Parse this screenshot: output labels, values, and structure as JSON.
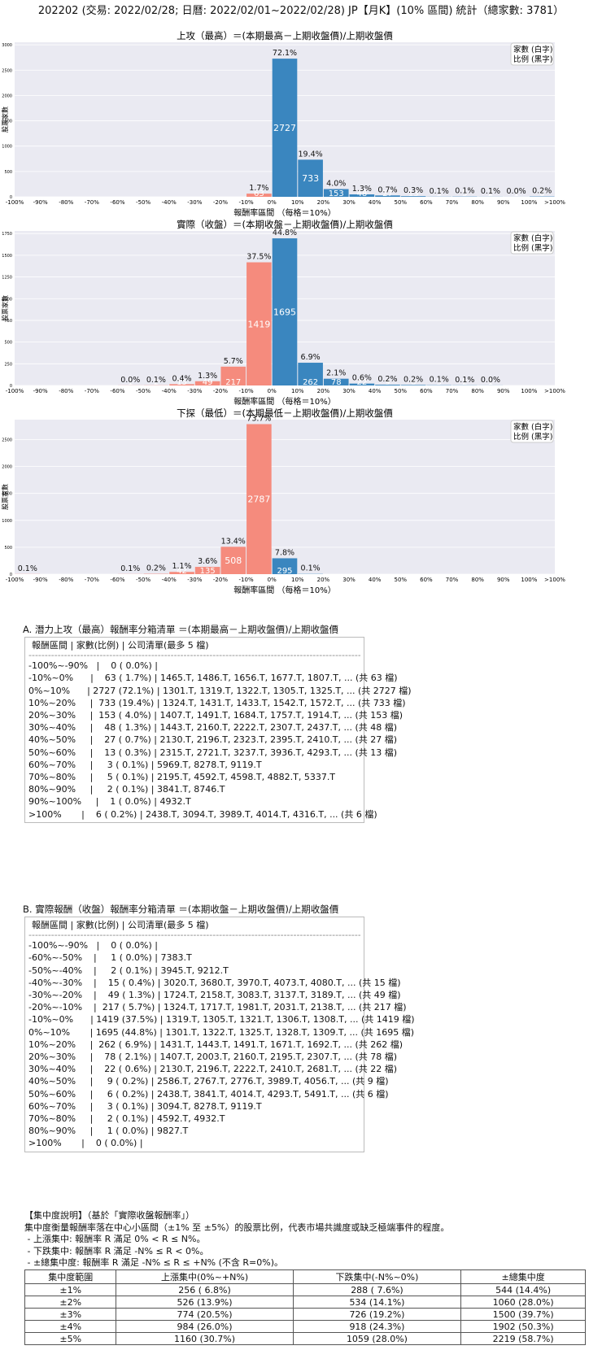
{
  "header": {
    "title": "202202 (交易: 2022/02/28; 日曆: 2022/02/01~2022/02/28) JP【月K】(10% 區間) 統計（總家數: 3781）"
  },
  "legend_note": [
    "家數 (白字)",
    "比例 (黑字)"
  ],
  "colors": {
    "negative": "#f58b7d",
    "positive": "#3a86bf",
    "plot_bg": "#eaeaf2"
  },
  "chart_data": [
    {
      "type": "bar",
      "title": "上攻（最高）＝(本期最高－上期收盤價)/上期收盤價",
      "xlabel": "報酬率區間 （每格＝10%）",
      "ylabel": "股票家數",
      "xticks": [
        "-100%",
        "-90%",
        "-80%",
        "-70%",
        "-60%",
        "-50%",
        "-40%",
        "-30%",
        "-20%",
        "-10%",
        "0%",
        "10%",
        "20%",
        "30%",
        "40%",
        "50%",
        "60%",
        "70%",
        "80%",
        "90%",
        "100%",
        ">100%"
      ],
      "yticks": [
        0,
        500,
        1000,
        1500,
        2000,
        2500,
        3000
      ],
      "ylim": [
        0,
        3050
      ],
      "categories": [
        "-100%~-90%",
        "-90%~-80%",
        "-80%~-70%",
        "-70%~-60%",
        "-60%~-50%",
        "-50%~-40%",
        "-40%~-30%",
        "-30%~-20%",
        "-20%~-10%",
        "-10%~0%",
        "0%~10%",
        "10%~20%",
        "20%~30%",
        "30%~40%",
        "40%~50%",
        "50%~60%",
        "60%~70%",
        "70%~80%",
        "80%~90%",
        "90%~100%",
        ">100%"
      ],
      "values": [
        0,
        null,
        null,
        null,
        null,
        null,
        null,
        null,
        null,
        63,
        2727,
        733,
        153,
        48,
        27,
        13,
        3,
        5,
        2,
        1,
        6
      ],
      "pct_labels": [
        "",
        "",
        "",
        "",
        "",
        "",
        "",
        "",
        "",
        "1.7%",
        "72.1%",
        "19.4%",
        "4.0%",
        "1.3%",
        "0.7%",
        "0.3%",
        "0.1%",
        "0.1%",
        "0.1%",
        "0.0%",
        "0.2%"
      ],
      "count_labels": [
        "",
        "",
        "",
        "",
        "",
        "",
        "",
        "",
        "",
        "63",
        "2727",
        "733",
        "153",
        "48",
        "27",
        "13",
        "3",
        "5",
        "2",
        "1",
        "6"
      ],
      "legend": "top-right"
    },
    {
      "type": "bar",
      "title": "實際（收盤）＝(本期收盤－上期收盤價)/上期收盤價",
      "xlabel": "報酬率區間 （每格＝10%）",
      "ylabel": "股票家數",
      "xticks": [
        "-100%",
        "-90%",
        "-80%",
        "-70%",
        "-60%",
        "-50%",
        "-40%",
        "-30%",
        "-20%",
        "-10%",
        "0%",
        "10%",
        "20%",
        "30%",
        "40%",
        "50%",
        "60%",
        "70%",
        "80%",
        "90%",
        "100%",
        ">100%"
      ],
      "yticks": [
        0,
        250,
        500,
        750,
        1000,
        1250,
        1500,
        1750
      ],
      "ylim": [
        0,
        1780
      ],
      "categories": [
        "-100%~-90%",
        "-90%~-80%",
        "-80%~-70%",
        "-70%~-60%",
        "-60%~-50%",
        "-50%~-40%",
        "-40%~-30%",
        "-30%~-20%",
        "-20%~-10%",
        "-10%~0%",
        "0%~10%",
        "10%~20%",
        "20%~30%",
        "30%~40%",
        "40%~50%",
        "50%~60%",
        "60%~70%",
        "70%~80%",
        "80%~90%",
        "90%~100%",
        ">100%"
      ],
      "values": [
        0,
        null,
        null,
        null,
        1,
        2,
        15,
        49,
        217,
        1419,
        1695,
        262,
        78,
        22,
        9,
        6,
        3,
        2,
        1,
        null,
        0
      ],
      "pct_labels": [
        "",
        "",
        "",
        "",
        "0.0%",
        "0.1%",
        "0.4%",
        "1.3%",
        "5.7%",
        "37.5%",
        "44.8%",
        "6.9%",
        "2.1%",
        "0.6%",
        "0.2%",
        "0.2%",
        "0.1%",
        "0.1%",
        "0.0%",
        "",
        ""
      ],
      "count_labels": [
        "",
        "",
        "",
        "",
        "1",
        "2",
        "15",
        "49",
        "217",
        "1419",
        "1695",
        "262",
        "78",
        "22",
        "9",
        "6",
        "3",
        "2",
        "1",
        "",
        ""
      ],
      "legend": "top-right"
    },
    {
      "type": "bar",
      "title": "下探（最低）＝(本期最低－上期收盤價)/上期收盤價",
      "xlabel": "報酬率區間 （每格＝10%）",
      "ylabel": "股票家數",
      "xticks": [
        "-100%",
        "-90%",
        "-80%",
        "-70%",
        "-60%",
        "-50%",
        "-40%",
        "-30%",
        "-20%",
        "-10%",
        "0%",
        "10%",
        "20%",
        "30%",
        "40%",
        "50%",
        "60%",
        "70%",
        "80%",
        "90%",
        "100%",
        ">100%"
      ],
      "yticks": [
        0,
        500,
        1000,
        1500,
        2000,
        2500
      ],
      "ylim": [
        0,
        2870
      ],
      "categories": [
        "-100%~-90%",
        "-90%~-80%",
        "-80%~-70%",
        "-70%~-60%",
        "-60%~-50%",
        "-50%~-40%",
        "-40%~-30%",
        "-30%~-20%",
        "-20%~-10%",
        "-10%~0%",
        "0%~10%",
        "10%~20%",
        "20%~30%",
        "30%~40%",
        "40%~50%",
        "50%~60%",
        "60%~70%",
        "70%~80%",
        "80%~90%",
        "90%~100%",
        ">100%"
      ],
      "values": [
        2,
        null,
        null,
        null,
        2,
        6,
        42,
        135,
        508,
        2787,
        295,
        4,
        null,
        null,
        null,
        null,
        null,
        null,
        null,
        null,
        null
      ],
      "pct_labels": [
        "0.1%",
        "",
        "",
        "",
        "0.1%",
        "0.2%",
        "1.1%",
        "3.6%",
        "13.4%",
        "73.7%",
        "7.8%",
        "0.1%",
        "",
        "",
        "",
        "",
        "",
        "",
        "",
        "",
        ""
      ],
      "count_labels": [
        "",
        "",
        "",
        "",
        "",
        "",
        "42",
        "135",
        "508",
        "2787",
        "295",
        "",
        "",
        "",
        "",
        "",
        "",
        "",
        "",
        "",
        ""
      ],
      "legend": "top-right"
    }
  ],
  "list_a": {
    "title": "A. 潛力上攻（最高）報酬率分箱清單 ＝(本期最高－上期收盤價)/上期收盤價",
    "header": "報酬區間      | 家數(比例)      | 公司清單(最多 5 檔)",
    "separator": "--------------------------------------------------------------------------------------------------------",
    "rows": [
      "-100%~-90%   |    0 ( 0.0%) |",
      "-10%~0%      |    63 ( 1.7%) | 1465.T, 1486.T, 1656.T, 1677.T, 1807.T, ... (共 63 檔)",
      "0%~10%      | 2727 (72.1%) | 1301.T, 1319.T, 1322.T, 1305.T, 1325.T, ... (共 2727 檔)",
      "10%~20%     |  733 (19.4%) | 1324.T, 1431.T, 1433.T, 1542.T, 1572.T, ... (共 733 檔)",
      "20%~30%     |  153 ( 4.0%) | 1407.T, 1491.T, 1684.T, 1757.T, 1914.T, ... (共 153 檔)",
      "30%~40%     |    48 ( 1.3%) | 1443.T, 2160.T, 2222.T, 2307.T, 2437.T, ... (共 48 檔)",
      "40%~50%     |    27 ( 0.7%) | 2130.T, 2196.T, 2323.T, 2395.T, 2410.T, ... (共 27 檔)",
      "50%~60%     |    13 ( 0.3%) | 2315.T, 2721.T, 3237.T, 3936.T, 4293.T, ... (共 13 檔)",
      "60%~70%     |     3 ( 0.1%) | 5969.T, 8278.T, 9119.T",
      "70%~80%     |     5 ( 0.1%) | 2195.T, 4592.T, 4598.T, 4882.T, 5337.T",
      "80%~90%     |     2 ( 0.1%) | 3841.T, 8746.T",
      "90%~100%     |    1 ( 0.0%) | 4932.T",
      ">100%       |    6 ( 0.2%) | 2438.T, 3094.T, 3989.T, 4014.T, 4316.T, ... (共 6 檔)"
    ]
  },
  "list_b": {
    "title": "B. 實際報酬（收盤）報酬率分箱清單 ＝(本期收盤－上期收盤價)/上期收盤價",
    "header": "報酬區間      | 家數(比例)      | 公司清單(最多 5 檔)",
    "separator": "--------------------------------------------------------------------------------------------------------",
    "rows": [
      "-100%~-90%   |    0 ( 0.0%) |",
      "-60%~-50%    |     1 ( 0.0%) | 7383.T",
      "-50%~-40%    |     2 ( 0.1%) | 3945.T, 9212.T",
      "-40%~-30%    |    15 ( 0.4%) | 3020.T, 3680.T, 3970.T, 4073.T, 4080.T, ... (共 15 檔)",
      "-30%~-20%    |    49 ( 1.3%) | 1724.T, 2158.T, 3083.T, 3137.T, 3189.T, ... (共 49 檔)",
      "-20%~-10%    |  217 ( 5.7%) | 1324.T, 1717.T, 1981.T, 2031.T, 2138.T, ... (共 217 檔)",
      "-10%~0%      | 1419 (37.5%) | 1319.T, 1305.T, 1321.T, 1306.T, 1308.T, ... (共 1419 檔)",
      "0%~10%       | 1695 (44.8%) | 1301.T, 1322.T, 1325.T, 1328.T, 1309.T, ... (共 1695 檔)",
      "10%~20%     |  262 ( 6.9%) | 1431.T, 1443.T, 1491.T, 1671.T, 1692.T, ... (共 262 檔)",
      "20%~30%     |    78 ( 2.1%) | 1407.T, 2003.T, 2160.T, 2195.T, 2307.T, ... (共 78 檔)",
      "30%~40%     |    22 ( 0.6%) | 2130.T, 2196.T, 2222.T, 2410.T, 2681.T, ... (共 22 檔)",
      "40%~50%     |     9 ( 0.2%) | 2586.T, 2767.T, 2776.T, 3989.T, 4056.T, ... (共 9 檔)",
      "50%~60%     |     6 ( 0.2%) | 2438.T, 3841.T, 4014.T, 4293.T, 5491.T, ... (共 6 檔)",
      "60%~70%     |     3 ( 0.1%) | 3094.T, 8278.T, 9119.T",
      "70%~80%     |     2 ( 0.1%) | 4592.T, 4932.T",
      "80%~90%     |     1 ( 0.0%) | 9827.T",
      ">100%       |    0 ( 0.0%) |"
    ]
  },
  "concentration": {
    "lines": [
      "【集中度說明】（基於「實際收盤報酬率」）",
      "集中度衡量報酬率落在中心小區間（±1% 至 ±5%）的股票比例，代表市場共識度或缺乏極端事件的程度。",
      " - 上漲集中: 報酬率 R 滿足 0% < R ≤ N%。",
      " - 下跌集中: 報酬率 R 滿足 -N% ≤ R < 0%。",
      " - ±總集中度: 報酬率 R 滿足 -N% ≤ R ≤ +N% (不含 R=0%)。"
    ],
    "headers": [
      "集中度範圍",
      "上漲集中(0%~+N%)",
      "下跌集中(-N%~0%)",
      "±總集中度"
    ],
    "rows": [
      [
        "±1%",
        "256 ( 6.8%)",
        "288 ( 7.6%)",
        "544 (14.4%)"
      ],
      [
        "±2%",
        "526 (13.9%)",
        "534 (14.1%)",
        "1060 (28.0%)"
      ],
      [
        "±3%",
        "774 (20.5%)",
        "726 (19.2%)",
        "1500 (39.7%)"
      ],
      [
        "±4%",
        "984 (26.0%)",
        "918 (24.3%)",
        "1902 (50.3%)"
      ],
      [
        "±5%",
        "1160 (30.7%)",
        "1059 (28.0%)",
        "2219 (58.7%)"
      ]
    ]
  }
}
